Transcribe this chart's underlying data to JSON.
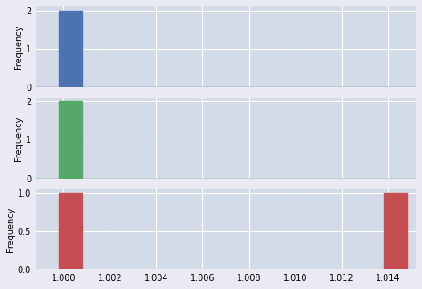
{
  "col1_data": [
    1.0,
    1.0
  ],
  "col2_data": [
    1.0,
    1.0
  ],
  "col3_data": [
    1.0,
    1.014
  ],
  "colors": [
    "#4c72b0",
    "#55a868",
    "#c44e52"
  ],
  "xlim": [
    0.9988,
    1.0152
  ],
  "xticks": [
    1.0,
    1.002,
    1.004,
    1.006,
    1.008,
    1.01,
    1.012,
    1.014
  ],
  "xtick_labels": [
    "1.000",
    "1.002",
    "1.004",
    "1.006",
    "1.008",
    "1.010",
    "1.012",
    "1.014"
  ],
  "ylabel": "Frequency",
  "fig_facecolor": "#eaeaf2",
  "ax_facecolor": "#d4dbe8",
  "grid_color": "#ffffff",
  "bin_width": 0.001
}
